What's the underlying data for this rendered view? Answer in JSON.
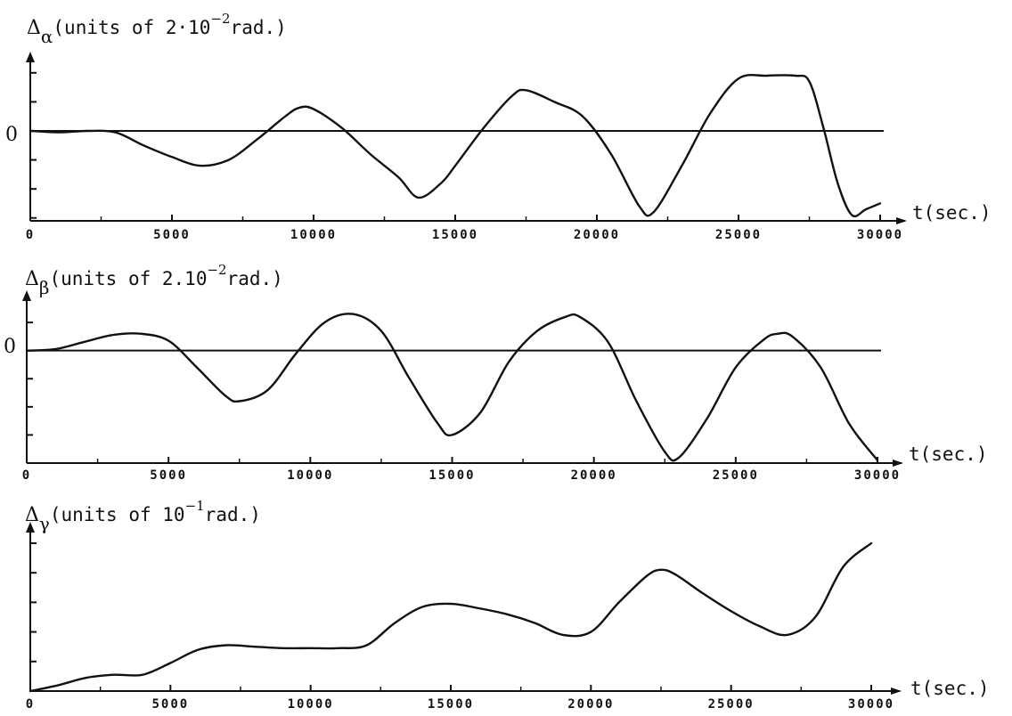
{
  "chart_data": [
    {
      "type": "line",
      "title_symbol": "Δ",
      "title_subscript": "α",
      "title_text": "(units of 2·10",
      "title_exponent": "−2",
      "title_suffix": "rad.)",
      "xlabel": "t(sec.)",
      "zero_label": "0",
      "xticks": [
        "0",
        "5000",
        "10000",
        "15000",
        "20000",
        "25000",
        "30000"
      ],
      "xlim": [
        0,
        30000
      ],
      "ylim": [
        -3.1,
        2.3
      ],
      "y_tick_values": [
        -3,
        -2,
        -1,
        0,
        1,
        2
      ],
      "series": [
        {
          "x": [
            0,
            1000,
            2000,
            3000,
            4000,
            5000,
            6000,
            7000,
            8000,
            9000,
            9500,
            10000,
            11000,
            12000,
            13000,
            13700,
            14500,
            15000,
            16000,
            17000,
            17500,
            18500,
            19500,
            20500,
            21500,
            22000,
            23000,
            24000,
            25000,
            26000,
            27000,
            27500,
            28000,
            28500,
            29000,
            29500,
            30000
          ],
          "y": [
            0,
            -0.05,
            0,
            -0.05,
            -0.5,
            -0.9,
            -1.2,
            -1.0,
            -0.3,
            0.5,
            0.8,
            0.75,
            0.1,
            -0.8,
            -1.6,
            -2.3,
            -1.8,
            -1.2,
            0.1,
            1.2,
            1.4,
            1.0,
            0.5,
            -0.8,
            -2.6,
            -2.8,
            -1.2,
            0.6,
            1.8,
            1.9,
            1.9,
            1.7,
            0.1,
            -1.8,
            -2.9,
            -2.7,
            -2.5
          ]
        }
      ]
    },
    {
      "type": "line",
      "title_symbol": "Δ",
      "title_subscript": "β",
      "title_text": "(units of 2.10",
      "title_exponent": "−2",
      "title_suffix": "rad.)",
      "xlabel": "t(sec.)",
      "zero_label": "0",
      "xticks": [
        "0",
        "5000",
        "10000",
        "15000",
        "20000",
        "25000",
        "30000"
      ],
      "xlim": [
        0,
        30000
      ],
      "ylim": [
        -4.0,
        1.7
      ],
      "y_tick_values": [
        -3,
        -2,
        -1,
        0,
        1
      ],
      "series": [
        {
          "x": [
            0,
            1000,
            2000,
            3000,
            4000,
            5000,
            6000,
            7000,
            7500,
            8500,
            9500,
            10500,
            11500,
            12500,
            13500,
            14500,
            15000,
            16000,
            17000,
            18000,
            19000,
            19500,
            20500,
            21500,
            22500,
            23000,
            24000,
            25000,
            26000,
            26500,
            27000,
            28000,
            29000,
            30000
          ],
          "y": [
            0,
            0.05,
            0.3,
            0.55,
            0.6,
            0.35,
            -0.6,
            -1.6,
            -1.8,
            -1.4,
            -0.1,
            1.0,
            1.3,
            0.7,
            -1.0,
            -2.6,
            -3.0,
            -2.2,
            -0.4,
            0.7,
            1.2,
            1.2,
            0.3,
            -1.8,
            -3.6,
            -3.8,
            -2.4,
            -0.6,
            0.4,
            0.6,
            0.5,
            -0.6,
            -2.6,
            -3.9
          ]
        }
      ]
    },
    {
      "type": "line",
      "title_symbol": "Δ",
      "title_subscript": "γ",
      "title_text": "(units of 10",
      "title_exponent": "−1",
      "title_suffix": "rad.)",
      "xlabel": "t(sec.)",
      "xticks": [
        "0",
        "5000",
        "10000",
        "15000",
        "20000",
        "25000",
        "30000"
      ],
      "xlim": [
        0,
        30000
      ],
      "ylim": [
        0,
        5.3
      ],
      "y_tick_values": [
        1,
        2,
        3,
        4,
        5
      ],
      "series": [
        {
          "x": [
            0,
            1000,
            2000,
            3000,
            4000,
            5000,
            6000,
            7000,
            8000,
            9000,
            10000,
            11000,
            12000,
            13000,
            14000,
            15000,
            16000,
            17000,
            18000,
            19000,
            20000,
            21000,
            22000,
            22500,
            23000,
            24000,
            25000,
            26000,
            27000,
            28000,
            29000,
            30000
          ],
          "y": [
            0,
            0.2,
            0.45,
            0.55,
            0.55,
            0.95,
            1.4,
            1.55,
            1.5,
            1.45,
            1.45,
            1.45,
            1.55,
            2.3,
            2.85,
            2.95,
            2.8,
            2.6,
            2.3,
            1.9,
            2.0,
            3.0,
            3.9,
            4.1,
            3.95,
            3.3,
            2.7,
            2.2,
            1.9,
            2.5,
            4.2,
            5.0
          ]
        }
      ]
    }
  ]
}
